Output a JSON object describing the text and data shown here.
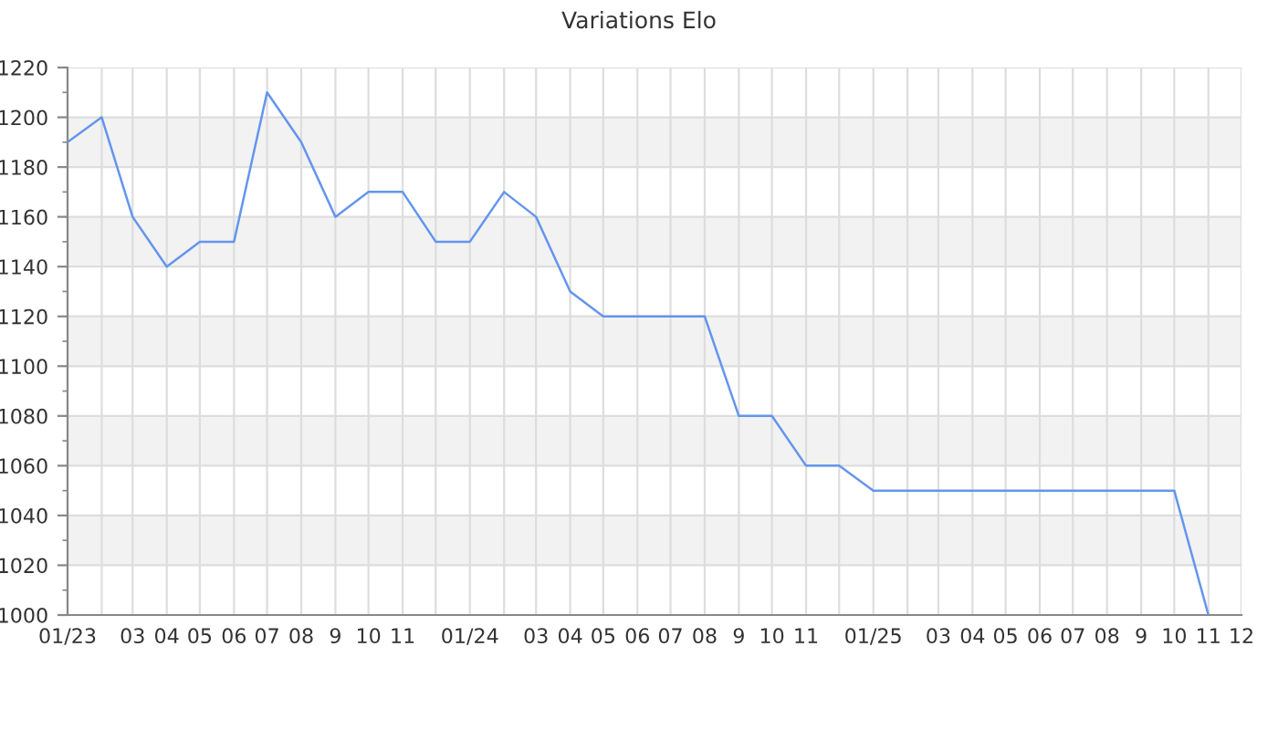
{
  "chart_data": {
    "type": "line",
    "title": "Variations Elo",
    "x": [
      "2023-01",
      "2023-02",
      "2023-03",
      "2023-04",
      "2023-05",
      "2023-06",
      "2023-07",
      "2023-08",
      "2023-09",
      "2023-10",
      "2023-11",
      "2023-12",
      "2024-01",
      "2024-02",
      "2024-03",
      "2024-04",
      "2024-05",
      "2024-06",
      "2024-07",
      "2024-08",
      "2024-09",
      "2024-10",
      "2024-11",
      "2024-12",
      "2025-01",
      "2025-02",
      "2025-03",
      "2025-04",
      "2025-05",
      "2025-06",
      "2025-07",
      "2025-08",
      "2025-09",
      "2025-10",
      "2025-11"
    ],
    "series": [
      {
        "color": "#6495ed",
        "values": [
          1190,
          1200,
          1160,
          1140,
          1150,
          1150,
          1210,
          1190,
          1160,
          1170,
          1170,
          1150,
          1150,
          1170,
          1160,
          1130,
          1120,
          1120,
          1120,
          1120,
          1080,
          1080,
          1060,
          1060,
          1050,
          1050,
          1050,
          1050,
          1050,
          1050,
          1050,
          1050,
          1050,
          1050,
          1000
        ]
      }
    ],
    "xlim": [
      "2023-01",
      "2025-12"
    ],
    "xticks": [
      {
        "value": "2023-01",
        "label": "01/23"
      },
      {
        "value": "2023-02",
        "label": null
      },
      {
        "value": "2023-03",
        "label": "03"
      },
      {
        "value": "2023-04",
        "label": "04"
      },
      {
        "value": "2023-05",
        "label": "05"
      },
      {
        "value": "2023-06",
        "label": "06"
      },
      {
        "value": "2023-07",
        "label": "07"
      },
      {
        "value": "2023-08",
        "label": "08"
      },
      {
        "value": "2023-09",
        "label": "9"
      },
      {
        "value": "2023-10",
        "label": "10"
      },
      {
        "value": "2023-11",
        "label": "11"
      },
      {
        "value": "2023-12",
        "label": null
      },
      {
        "value": "2024-01",
        "label": "01/24"
      },
      {
        "value": "2024-02",
        "label": null
      },
      {
        "value": "2024-03",
        "label": "03"
      },
      {
        "value": "2024-04",
        "label": "04"
      },
      {
        "value": "2024-05",
        "label": "05"
      },
      {
        "value": "2024-06",
        "label": "06"
      },
      {
        "value": "2024-07",
        "label": "07"
      },
      {
        "value": "2024-08",
        "label": "08"
      },
      {
        "value": "2024-09",
        "label": "9"
      },
      {
        "value": "2024-10",
        "label": "10"
      },
      {
        "value": "2024-11",
        "label": "11"
      },
      {
        "value": "2024-12",
        "label": null
      },
      {
        "value": "2025-01",
        "label": "01/25"
      },
      {
        "value": "2025-02",
        "label": null
      },
      {
        "value": "2025-03",
        "label": "03"
      },
      {
        "value": "2025-04",
        "label": "04"
      },
      {
        "value": "2025-05",
        "label": "05"
      },
      {
        "value": "2025-06",
        "label": "06"
      },
      {
        "value": "2025-07",
        "label": "07"
      },
      {
        "value": "2025-08",
        "label": "08"
      },
      {
        "value": "2025-09",
        "label": "9"
      },
      {
        "value": "2025-10",
        "label": "10"
      },
      {
        "value": "2025-11",
        "label": "11"
      },
      {
        "value": "2025-12",
        "label": "12"
      }
    ],
    "ylim": [
      1000,
      1220
    ],
    "yticks": [
      1000,
      {
        "value": 1010,
        "label": null
      },
      1020,
      {
        "value": 1030,
        "label": null
      },
      1040,
      {
        "value": 1050,
        "label": null
      },
      1060,
      {
        "value": 1070,
        "label": null
      },
      1080,
      {
        "value": 1090,
        "label": null
      },
      1100,
      {
        "value": 1110,
        "label": null
      },
      1120,
      {
        "value": 1130,
        "label": null
      },
      1140,
      {
        "value": 1150,
        "label": null
      },
      1160,
      {
        "value": 1170,
        "label": null
      },
      1180,
      {
        "value": 1190,
        "label": null
      },
      1200,
      {
        "value": 1210,
        "label": null
      },
      1220
    ],
    "bands": [
      {
        "axis": "y",
        "from": 1020,
        "to": 1040,
        "color": "#f2f2f2"
      },
      {
        "axis": "y",
        "from": 1060,
        "to": 1080,
        "color": "#f2f2f2"
      },
      {
        "axis": "y",
        "from": 1100,
        "to": 1120,
        "color": "#f2f2f2"
      },
      {
        "axis": "y",
        "from": 1140,
        "to": 1160,
        "color": "#f2f2f2"
      },
      {
        "axis": "y",
        "from": 1180,
        "to": 1200,
        "color": "#f2f2f2"
      }
    ],
    "grid": true,
    "marker": "none",
    "line_style": "solid"
  }
}
